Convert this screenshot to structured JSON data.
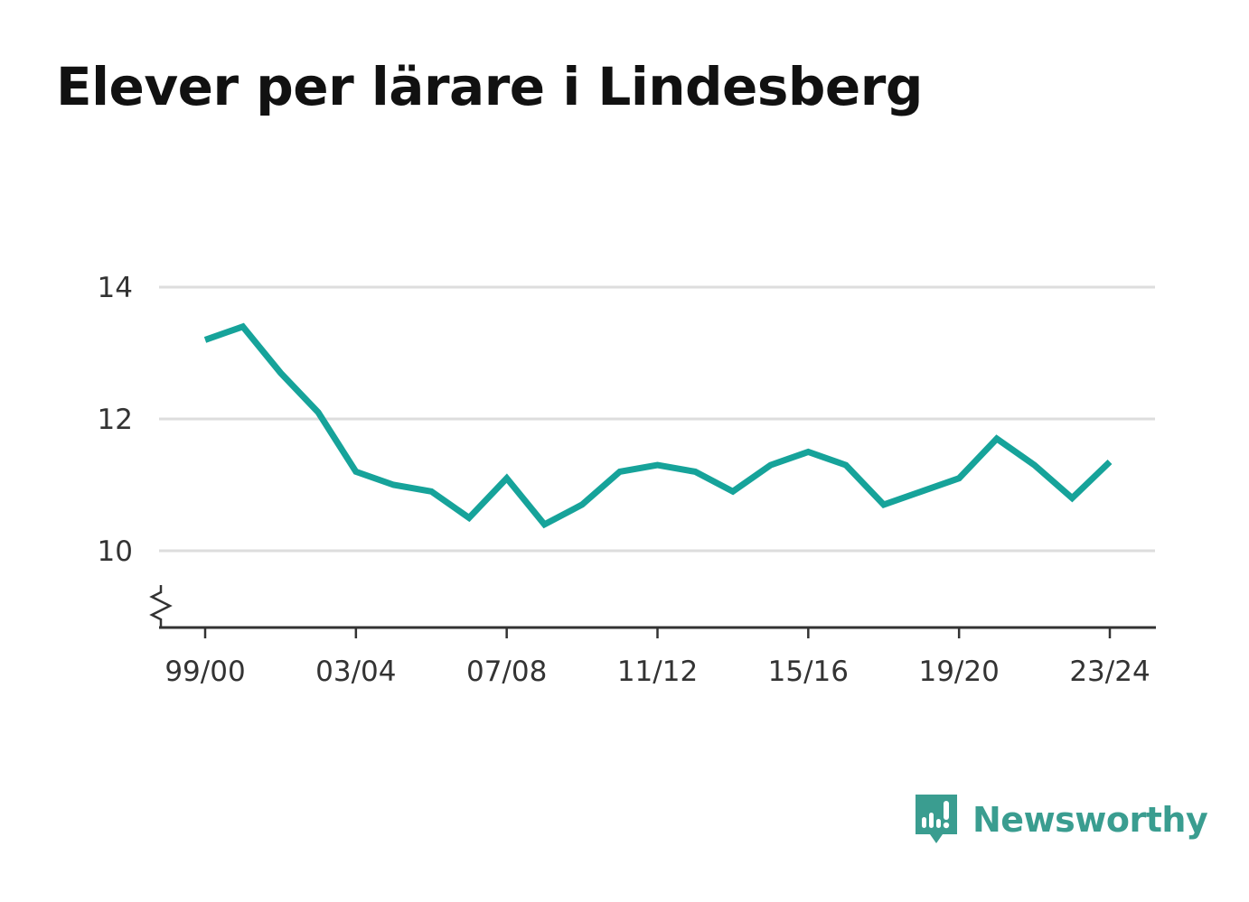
{
  "title": "Elever per lärare i Lindesberg",
  "brand": {
    "name": "Newsworthy",
    "color": "#3a9d90",
    "icon": "newsworthy-logo-icon"
  },
  "colors": {
    "line": "#16a39a",
    "grid": "#dddddd",
    "axis": "#333333",
    "text": "#333333"
  },
  "chart_data": {
    "type": "line",
    "title": "Elever per lärare i Lindesberg",
    "xlabel": "",
    "ylabel": "",
    "x": [
      "99/00",
      "00/01",
      "01/02",
      "02/03",
      "03/04",
      "04/05",
      "05/06",
      "06/07",
      "07/08",
      "08/09",
      "09/10",
      "10/11",
      "11/12",
      "12/13",
      "13/14",
      "14/15",
      "15/16",
      "16/17",
      "17/18",
      "18/19",
      "19/20",
      "20/21",
      "21/22",
      "22/23",
      "23/24"
    ],
    "x_tick_labels": [
      "99/00",
      "03/04",
      "07/08",
      "11/12",
      "15/16",
      "19/20",
      "23/24"
    ],
    "y_ticks": [
      10,
      12,
      14
    ],
    "ylim": [
      8.85,
      14
    ],
    "axis_break": true,
    "grid": true,
    "series": [
      {
        "values": [
          13.2,
          13.4,
          12.7,
          12.1,
          11.2,
          11.0,
          10.9,
          10.5,
          11.1,
          10.4,
          10.7,
          11.2,
          11.3,
          11.2,
          10.9,
          11.3,
          11.5,
          11.3,
          10.7,
          10.9,
          11.1,
          11.7,
          11.3,
          10.8,
          11.35
        ]
      }
    ]
  }
}
